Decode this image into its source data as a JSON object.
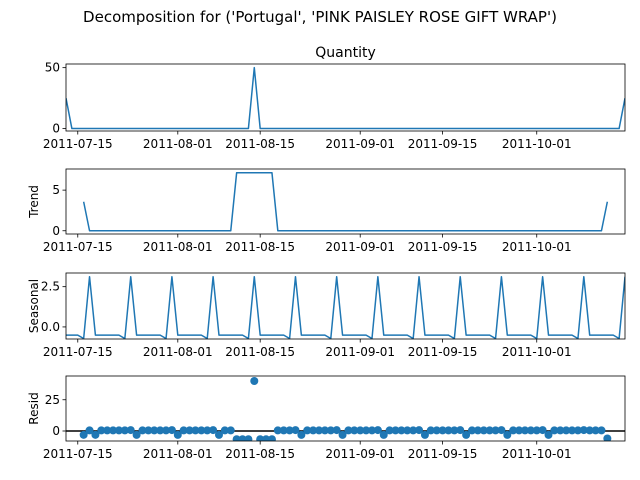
{
  "figure": {
    "suptitle": "Decomposition for ('Portugal', 'PINK PAISLEY ROSE GIFT WRAP')",
    "line_color": "#1f77b4"
  },
  "chart_data": [
    {
      "type": "line",
      "title": "Quantity",
      "ylabel": "",
      "x_start": "2011-07-13",
      "x_end": "2011-10-16",
      "x_ticks": [
        "2011-07-15",
        "2011-08-01",
        "2011-08-15",
        "2011-09-01",
        "2011-09-15",
        "2011-10-01"
      ],
      "y_ticks": [
        0,
        50
      ],
      "ylim": [
        -2,
        53
      ],
      "series": [
        {
          "points": [
            [
              "2011-07-13",
              25
            ],
            [
              "2011-07-14",
              0
            ],
            [
              "2011-08-13",
              0
            ],
            [
              "2011-08-14",
              50
            ],
            [
              "2011-08-15",
              0
            ],
            [
              "2011-10-15",
              0
            ],
            [
              "2011-10-16",
              25
            ]
          ]
        }
      ]
    },
    {
      "type": "line",
      "title": "",
      "ylabel": "Trend",
      "x_start": "2011-07-13",
      "x_end": "2011-10-16",
      "x_ticks": [
        "2011-07-15",
        "2011-08-01",
        "2011-08-15",
        "2011-09-01",
        "2011-09-15",
        "2011-10-01"
      ],
      "y_ticks": [
        0,
        5
      ],
      "ylim": [
        -0.4,
        7.6
      ],
      "series": [
        {
          "points": [
            [
              "2011-07-16",
              3.57
            ],
            [
              "2011-07-17",
              0
            ],
            [
              "2011-08-10",
              0
            ],
            [
              "2011-08-11",
              7.14
            ],
            [
              "2011-08-17",
              7.14
            ],
            [
              "2011-08-18",
              0
            ],
            [
              "2011-10-12",
              0
            ],
            [
              "2011-10-13",
              3.57
            ]
          ]
        }
      ]
    },
    {
      "type": "line",
      "title": "",
      "ylabel": "Seasonal",
      "x_start": "2011-07-13",
      "x_end": "2011-10-16",
      "x_ticks": [
        "2011-07-15",
        "2011-08-01",
        "2011-08-15",
        "2011-09-01",
        "2011-09-15",
        "2011-10-01"
      ],
      "y_ticks": [
        0.0,
        2.5
      ],
      "y_tick_labels": [
        "0.0",
        "2.5"
      ],
      "ylim": [
        -0.75,
        3.35
      ],
      "seasonal_pattern": [
        -0.51,
        -0.51,
        -0.51,
        -0.51,
        -0.51,
        -0.72,
        3.12
      ],
      "pattern_start": "2011-07-11",
      "series": []
    },
    {
      "type": "scatter",
      "title": "",
      "ylabel": "Resid",
      "x_start": "2011-07-13",
      "x_end": "2011-10-16",
      "x_ticks": [
        "2011-07-15",
        "2011-08-01",
        "2011-08-15",
        "2011-09-01",
        "2011-09-15",
        "2011-10-01"
      ],
      "y_ticks": [
        0,
        25
      ],
      "ylim": [
        -8,
        44
      ],
      "zero_line": true,
      "series": [
        {
          "points": [
            [
              "2011-07-16",
              -3.06
            ],
            [
              "2011-07-17",
              0.51
            ],
            [
              "2011-07-18",
              -3.06
            ],
            [
              "2011-07-19",
              0.51
            ],
            [
              "2011-07-20",
              0.51
            ],
            [
              "2011-07-21",
              0.51
            ],
            [
              "2011-07-22",
              0.51
            ],
            [
              "2011-07-23",
              0.51
            ],
            [
              "2011-07-24",
              0.72
            ],
            [
              "2011-07-25",
              -3.12
            ],
            [
              "2011-07-26",
              0.51
            ],
            [
              "2011-07-27",
              0.51
            ],
            [
              "2011-07-28",
              0.51
            ],
            [
              "2011-07-29",
              0.51
            ],
            [
              "2011-07-30",
              0.51
            ],
            [
              "2011-07-31",
              0.72
            ],
            [
              "2011-08-01",
              -3.12
            ],
            [
              "2011-08-02",
              0.51
            ],
            [
              "2011-08-03",
              0.51
            ],
            [
              "2011-08-04",
              0.51
            ],
            [
              "2011-08-05",
              0.51
            ],
            [
              "2011-08-06",
              0.51
            ],
            [
              "2011-08-07",
              0.72
            ],
            [
              "2011-08-08",
              -3.12
            ],
            [
              "2011-08-09",
              0.51
            ],
            [
              "2011-08-10",
              0.51
            ],
            [
              "2011-08-11",
              -6.6
            ],
            [
              "2011-08-12",
              -6.6
            ],
            [
              "2011-08-13",
              -6.6
            ],
            [
              "2011-08-14",
              40.0
            ],
            [
              "2011-08-15",
              -6.6
            ],
            [
              "2011-08-16",
              -6.6
            ],
            [
              "2011-08-17",
              -6.6
            ],
            [
              "2011-08-18",
              0.51
            ],
            [
              "2011-08-19",
              0.51
            ],
            [
              "2011-08-20",
              0.51
            ],
            [
              "2011-08-21",
              0.72
            ],
            [
              "2011-08-22",
              -3.12
            ],
            [
              "2011-08-23",
              0.51
            ],
            [
              "2011-08-24",
              0.51
            ],
            [
              "2011-08-25",
              0.51
            ],
            [
              "2011-08-26",
              0.51
            ],
            [
              "2011-08-27",
              0.51
            ],
            [
              "2011-08-28",
              0.72
            ],
            [
              "2011-08-29",
              -3.12
            ],
            [
              "2011-08-30",
              0.51
            ],
            [
              "2011-08-31",
              0.51
            ],
            [
              "2011-09-01",
              0.51
            ],
            [
              "2011-09-02",
              0.51
            ],
            [
              "2011-09-03",
              0.51
            ],
            [
              "2011-09-04",
              0.72
            ],
            [
              "2011-09-05",
              -3.12
            ],
            [
              "2011-09-06",
              0.51
            ],
            [
              "2011-09-07",
              0.51
            ],
            [
              "2011-09-08",
              0.51
            ],
            [
              "2011-09-09",
              0.51
            ],
            [
              "2011-09-10",
              0.51
            ],
            [
              "2011-09-11",
              0.72
            ],
            [
              "2011-09-12",
              -3.12
            ],
            [
              "2011-09-13",
              0.51
            ],
            [
              "2011-09-14",
              0.51
            ],
            [
              "2011-09-15",
              0.51
            ],
            [
              "2011-09-16",
              0.51
            ],
            [
              "2011-09-17",
              0.51
            ],
            [
              "2011-09-18",
              0.72
            ],
            [
              "2011-09-19",
              -3.12
            ],
            [
              "2011-09-20",
              0.51
            ],
            [
              "2011-09-21",
              0.51
            ],
            [
              "2011-09-22",
              0.51
            ],
            [
              "2011-09-23",
              0.51
            ],
            [
              "2011-09-24",
              0.51
            ],
            [
              "2011-09-25",
              0.72
            ],
            [
              "2011-09-26",
              -3.12
            ],
            [
              "2011-09-27",
              0.51
            ],
            [
              "2011-09-28",
              0.51
            ],
            [
              "2011-09-29",
              0.51
            ],
            [
              "2011-09-30",
              0.51
            ],
            [
              "2011-10-01",
              0.51
            ],
            [
              "2011-10-02",
              0.72
            ],
            [
              "2011-10-03",
              -3.12
            ],
            [
              "2011-10-04",
              0.51
            ],
            [
              "2011-10-05",
              0.51
            ],
            [
              "2011-10-06",
              0.51
            ],
            [
              "2011-10-07",
              0.51
            ],
            [
              "2011-10-08",
              0.51
            ],
            [
              "2011-10-09",
              0.72
            ],
            [
              "2011-10-10",
              0.51
            ],
            [
              "2011-10-11",
              0.51
            ],
            [
              "2011-10-12",
              0.51
            ],
            [
              "2011-10-13",
              -6.0
            ]
          ]
        }
      ]
    }
  ]
}
